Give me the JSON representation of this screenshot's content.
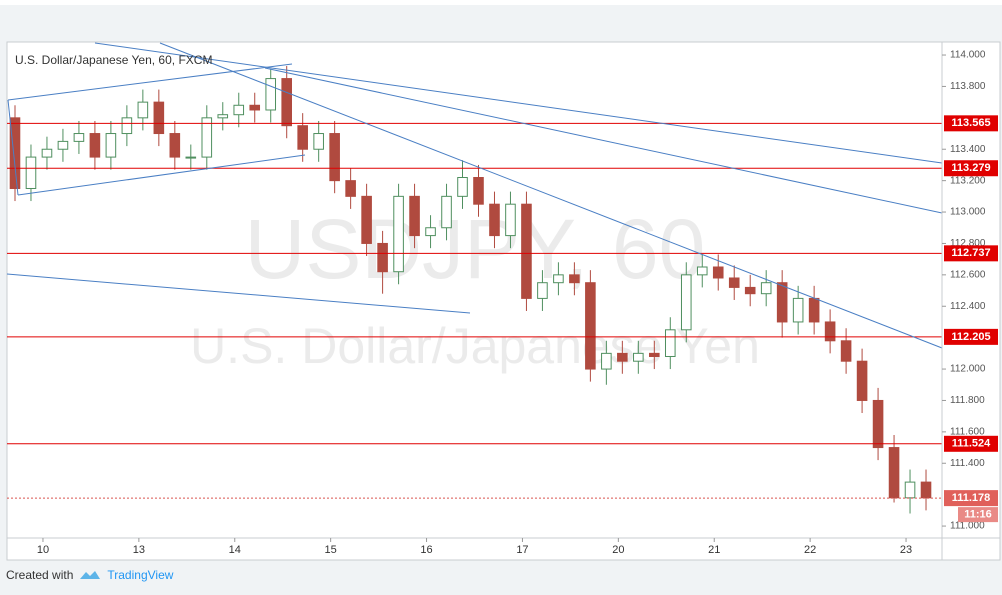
{
  "chart_data": {
    "type": "candlestick",
    "title": "U.S. Dollar/Japanese Yen, 60, FXCM",
    "watermark": [
      "USDJPY, 60",
      "U.S. Dollar/Japanese Yen"
    ],
    "x": [
      2,
      6,
      10,
      14,
      18,
      22,
      26,
      30,
      34,
      38,
      42,
      46,
      50,
      54,
      58,
      62,
      66,
      70,
      74,
      78,
      82,
      86,
      90,
      94,
      98,
      102,
      106,
      110,
      114,
      118,
      122,
      126,
      130,
      134,
      138,
      142,
      146,
      150,
      154,
      158,
      162,
      166,
      170,
      174,
      178,
      182,
      186,
      190,
      194,
      198,
      202,
      206,
      210,
      214,
      218,
      222,
      226,
      230
    ],
    "open": [
      113.6,
      113.15,
      113.35,
      113.4,
      113.45,
      113.5,
      113.35,
      113.5,
      113.6,
      113.7,
      113.5,
      113.35,
      113.35,
      113.6,
      113.62,
      113.68,
      113.65,
      113.85,
      113.55,
      113.4,
      113.5,
      113.2,
      113.1,
      112.8,
      112.62,
      113.1,
      112.85,
      112.9,
      113.1,
      113.22,
      113.05,
      112.85,
      113.05,
      112.45,
      112.55,
      112.6,
      112.55,
      112.0,
      112.1,
      112.05,
      112.1,
      112.08,
      112.25,
      112.6,
      112.65,
      112.58,
      112.52,
      112.48,
      112.55,
      112.3,
      112.45,
      112.3,
      112.18,
      112.05,
      111.8,
      111.5,
      111.18,
      111.28
    ],
    "high": [
      113.68,
      113.43,
      113.48,
      113.53,
      113.58,
      113.58,
      113.58,
      113.68,
      113.78,
      113.78,
      113.58,
      113.43,
      113.68,
      113.7,
      113.76,
      113.76,
      113.91,
      113.93,
      113.63,
      113.58,
      113.58,
      113.28,
      113.18,
      112.88,
      113.18,
      113.18,
      112.98,
      113.18,
      113.33,
      113.3,
      113.13,
      113.13,
      113.13,
      112.63,
      112.68,
      112.68,
      112.63,
      112.18,
      112.18,
      112.18,
      112.18,
      112.33,
      112.68,
      112.73,
      112.73,
      112.66,
      112.6,
      112.63,
      112.63,
      112.53,
      112.53,
      112.38,
      112.26,
      112.13,
      111.88,
      111.58,
      111.36,
      111.36
    ],
    "low": [
      113.07,
      113.07,
      113.27,
      113.32,
      113.37,
      113.27,
      113.27,
      113.42,
      113.52,
      113.42,
      113.27,
      113.27,
      113.27,
      113.52,
      113.54,
      113.57,
      113.57,
      113.47,
      113.32,
      113.32,
      113.12,
      113.02,
      112.72,
      112.48,
      112.54,
      112.77,
      112.77,
      112.82,
      113.02,
      112.97,
      112.77,
      112.77,
      112.37,
      112.37,
      112.47,
      112.47,
      111.92,
      111.9,
      111.97,
      111.97,
      112.0,
      112.0,
      112.17,
      112.52,
      112.5,
      112.44,
      112.4,
      112.4,
      112.2,
      112.22,
      112.22,
      112.1,
      111.97,
      111.72,
      111.42,
      111.15,
      111.08,
      111.1
    ],
    "close": [
      113.15,
      113.35,
      113.4,
      113.45,
      113.5,
      113.35,
      113.5,
      113.6,
      113.7,
      113.5,
      113.35,
      113.35,
      113.6,
      113.62,
      113.68,
      113.65,
      113.85,
      113.55,
      113.4,
      113.5,
      113.2,
      113.1,
      112.8,
      112.62,
      113.1,
      112.85,
      112.9,
      113.1,
      113.22,
      113.05,
      112.85,
      113.05,
      112.45,
      112.55,
      112.6,
      112.55,
      112.0,
      112.1,
      112.05,
      112.1,
      112.08,
      112.25,
      112.6,
      112.65,
      112.58,
      112.52,
      112.48,
      112.55,
      112.3,
      112.45,
      112.3,
      112.18,
      112.05,
      111.8,
      111.5,
      111.18,
      111.28,
      111.18
    ],
    "up_color": "#4f8f5f",
    "down_color": "#b04a3f",
    "xlim": [
      0,
      234
    ],
    "xticks": [
      {
        "value": 9,
        "label": "10"
      },
      {
        "value": 33,
        "label": "13"
      },
      {
        "value": 57,
        "label": "14"
      },
      {
        "value": 81,
        "label": "15"
      },
      {
        "value": 105,
        "label": "16"
      },
      {
        "value": 129,
        "label": "17"
      },
      {
        "value": 153,
        "label": "20"
      },
      {
        "value": 177,
        "label": "21"
      },
      {
        "value": 201,
        "label": "22"
      },
      {
        "value": 225,
        "label": "23"
      }
    ],
    "ylim": [
      110.924,
      114.083
    ],
    "yticks": [
      {
        "value": 114,
        "label": "114.000"
      },
      {
        "value": 113.8,
        "label": "113.800"
      },
      {
        "value": 113.4,
        "label": "113.400"
      },
      {
        "value": 113.2,
        "label": "113.200"
      },
      {
        "value": 113,
        "label": "113.000"
      },
      {
        "value": 112.8,
        "label": "112.800"
      },
      {
        "value": 112.6,
        "label": "112.600"
      },
      {
        "value": 112.4,
        "label": "112.400"
      },
      {
        "value": 112,
        "label": "112.000"
      },
      {
        "value": 111.8,
        "label": "111.800"
      },
      {
        "value": 111.6,
        "label": "111.600"
      },
      {
        "value": 111.4,
        "label": "111.400"
      },
      {
        "value": 111,
        "label": "111.000"
      }
    ],
    "levels": [
      113.565,
      113.279,
      112.737,
      112.205,
      111.524
    ],
    "level_color": "#e00000",
    "last_price": 111.178,
    "countdown": "11:16"
  },
  "footer": {
    "created_with": "Created with",
    "brand": "TradingView"
  }
}
